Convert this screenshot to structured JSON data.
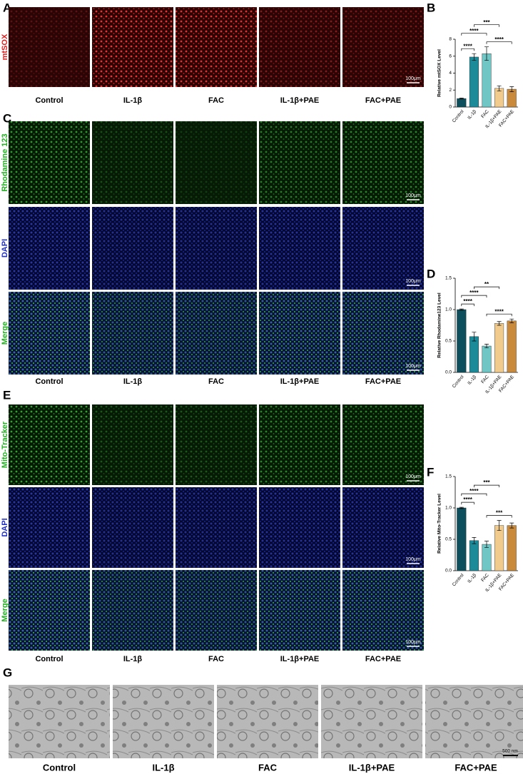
{
  "figure": {
    "panels": [
      "A",
      "B",
      "C",
      "D",
      "E",
      "F",
      "G"
    ],
    "columns": [
      "Control",
      "IL-1β",
      "FAC",
      "IL-1β+PAE",
      "FAC+PAE"
    ],
    "mtsox_rows": [
      "mtSOX"
    ],
    "rhodamine_rows": [
      "Rhodamine 123",
      "DAPI",
      "Merge"
    ],
    "mito_rows": [
      "Mito-Tracker",
      "DAPI",
      "Merge"
    ],
    "scale_bar": "100μm",
    "tem_scale_bar": "500 nm"
  },
  "chart_data": [
    {
      "type": "bar",
      "y_label": "Relative mtSOX Level",
      "categories": [
        "Control",
        "IL-1β",
        "FAC",
        "IL-1β+PAE",
        "FAC+PAE"
      ],
      "values": [
        1.0,
        5.9,
        6.3,
        2.2,
        2.1
      ],
      "errors": [
        0.05,
        0.4,
        0.8,
        0.3,
        0.3
      ],
      "colors": [
        "#0d4f5c",
        "#1b8a99",
        "#6fc6c4",
        "#f1cb8e",
        "#c98a3c"
      ],
      "ylim": [
        0,
        8
      ],
      "yticks": [
        0,
        2,
        4,
        6,
        8
      ],
      "comparisons": [
        {
          "label": "****",
          "groups": [
            "Control",
            "IL-1β"
          ]
        },
        {
          "label": "****",
          "groups": [
            "FAC",
            "FAC+PAE"
          ]
        },
        {
          "label": "****",
          "groups": [
            "Control",
            "FAC"
          ]
        },
        {
          "label": "***",
          "groups": [
            "IL-1β",
            "IL-1β+PAE"
          ]
        }
      ]
    },
    {
      "type": "bar",
      "y_label": "Relative Rhodamine123 Level",
      "categories": [
        "Control",
        "IL-1β",
        "FAC",
        "IL-1β+PAE",
        "FAC+PAE"
      ],
      "values": [
        1.0,
        0.57,
        0.42,
        0.78,
        0.82
      ],
      "errors": [
        0.01,
        0.07,
        0.03,
        0.03,
        0.03
      ],
      "colors": [
        "#0d4f5c",
        "#1b8a99",
        "#6fc6c4",
        "#f1cb8e",
        "#c98a3c"
      ],
      "ylim": [
        0,
        1.5
      ],
      "yticks": [
        {
          "value": 0,
          "label": "0.0"
        },
        {
          "value": 0.5,
          "label": "0.5"
        },
        {
          "value": 1,
          "label": "1.0"
        },
        {
          "value": 1.5,
          "label": "1.5"
        }
      ],
      "comparisons": [
        {
          "label": "****",
          "groups": [
            "Control",
            "IL-1β"
          ]
        },
        {
          "label": "****",
          "groups": [
            "FAC",
            "FAC+PAE"
          ]
        },
        {
          "label": "****",
          "groups": [
            "Control",
            "FAC"
          ]
        },
        {
          "label": "**",
          "groups": [
            "IL-1β",
            "IL-1β+PAE"
          ]
        }
      ]
    },
    {
      "type": "bar",
      "y_label": "Relative Mito-Tracker Level",
      "categories": [
        "Control",
        "IL-1β",
        "FAC",
        "IL-1β+PAE",
        "FAC+PAE"
      ],
      "values": [
        1.0,
        0.48,
        0.42,
        0.72,
        0.72
      ],
      "errors": [
        0.01,
        0.05,
        0.05,
        0.08,
        0.04
      ],
      "colors": [
        "#0d4f5c",
        "#1b8a99",
        "#6fc6c4",
        "#f1cb8e",
        "#c98a3c"
      ],
      "ylim": [
        0,
        1.5
      ],
      "yticks": [
        {
          "value": 0,
          "label": "0.0"
        },
        {
          "value": 0.5,
          "label": "0.5"
        },
        {
          "value": 1,
          "label": "1.0"
        },
        {
          "value": 1.5,
          "label": "1.5"
        }
      ],
      "comparisons": [
        {
          "label": "****",
          "groups": [
            "Control",
            "IL-1β"
          ]
        },
        {
          "label": "***",
          "groups": [
            "FAC",
            "FAC+PAE"
          ]
        },
        {
          "label": "****",
          "groups": [
            "Control",
            "FAC"
          ]
        },
        {
          "label": "***",
          "groups": [
            "IL-1β",
            "IL-1β+PAE"
          ]
        }
      ]
    }
  ]
}
